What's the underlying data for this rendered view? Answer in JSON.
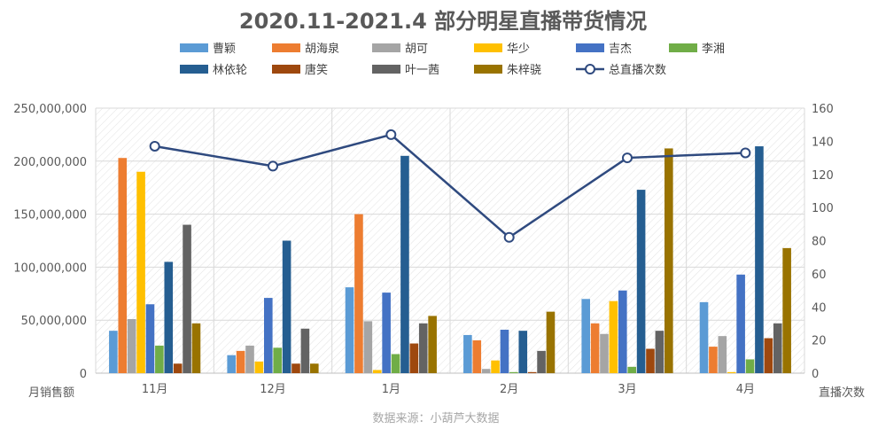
{
  "chart_data": {
    "type": "bar",
    "title": "2020.11-2021.4 部分明星直播带货情况",
    "categories": [
      "11月",
      "12月",
      "1月",
      "2月",
      "3月",
      "4月"
    ],
    "series": [
      {
        "name": "曹颖",
        "color": "#5B9BD5",
        "values": [
          40000000,
          17000000,
          81000000,
          36000000,
          70000000,
          67000000
        ]
      },
      {
        "name": "胡海泉",
        "color": "#ED7D31",
        "values": [
          203000000,
          21000000,
          150000000,
          31000000,
          47000000,
          25000000
        ]
      },
      {
        "name": "胡可",
        "color": "#A5A5A5",
        "values": [
          51000000,
          26000000,
          49000000,
          4000000,
          37000000,
          35000000
        ]
      },
      {
        "name": "华少",
        "color": "#FFC000",
        "values": [
          190000000,
          11000000,
          3000000,
          12000000,
          68000000,
          1000000
        ]
      },
      {
        "name": "吉杰",
        "color": "#4472C4",
        "values": [
          65000000,
          71000000,
          76000000,
          41000000,
          78000000,
          93000000
        ]
      },
      {
        "name": "李湘",
        "color": "#70AD47",
        "values": [
          26000000,
          24000000,
          18000000,
          1000000,
          6000000,
          13000000
        ]
      },
      {
        "name": "林依轮",
        "color": "#255E91",
        "values": [
          105000000,
          125000000,
          205000000,
          40000000,
          173000000,
          214000000
        ]
      },
      {
        "name": "唐笑",
        "color": "#9E480E",
        "values": [
          9000000,
          9000000,
          28000000,
          1000000,
          23000000,
          33000000
        ]
      },
      {
        "name": "叶一茜",
        "color": "#636363",
        "values": [
          140000000,
          42000000,
          47000000,
          21000000,
          40000000,
          47000000
        ]
      },
      {
        "name": "朱梓骁",
        "color": "#997300",
        "values": [
          47000000,
          9000000,
          54000000,
          58000000,
          212000000,
          118000000
        ]
      }
    ],
    "line_series": {
      "name": "总直播次数",
      "color": "#2F4A7F",
      "values": [
        137,
        125,
        144,
        82,
        130,
        133
      ]
    },
    "y_left": {
      "label": "月销售额",
      "ylim": [
        0,
        250000000
      ],
      "ticks": [
        "0",
        "50,000,000",
        "100,000,000",
        "150,000,000",
        "200,000,000",
        "250,000,000"
      ]
    },
    "y_right": {
      "label": "直播次数",
      "ylim": [
        0,
        160
      ],
      "ticks": [
        "0",
        "20",
        "40",
        "60",
        "80",
        "100",
        "120",
        "140",
        "160"
      ]
    },
    "legend_position": "top",
    "grid": true,
    "source": "数据来源：小葫芦大数据"
  }
}
